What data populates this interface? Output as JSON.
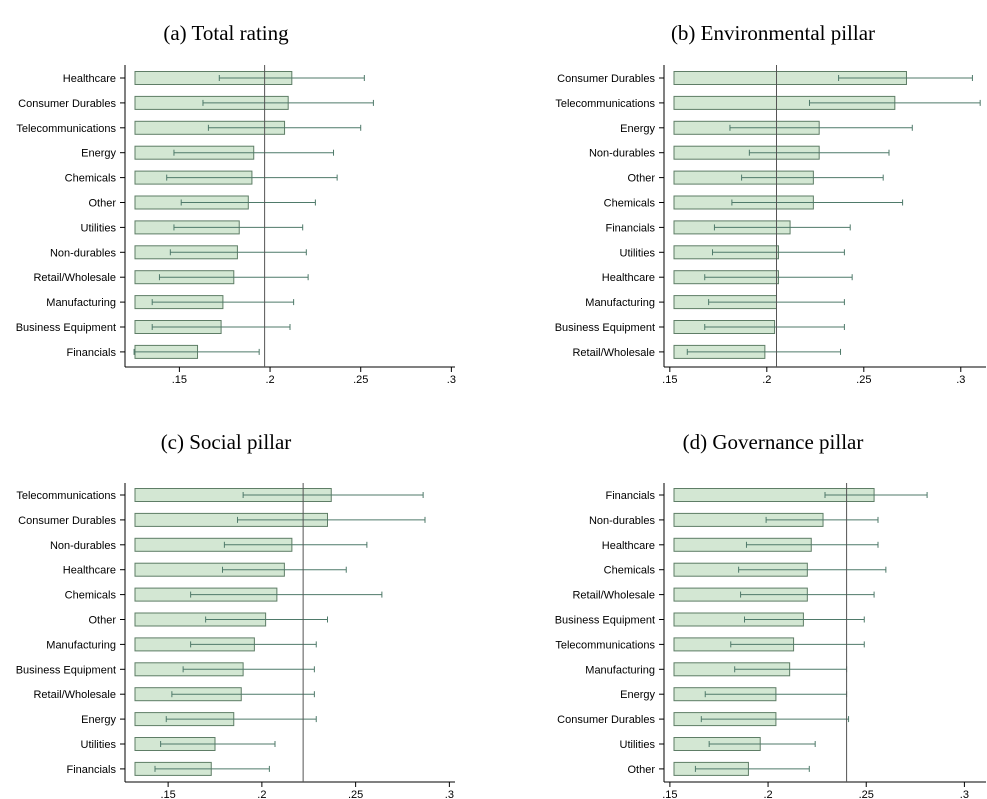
{
  "colors": {
    "bar_fill": "#d3e7d3",
    "bar_stroke": "#5e7d66",
    "whisker": "#4f7a6a",
    "mean_line": "#555555",
    "axis": "#000000"
  },
  "chart_data": [
    {
      "type": "bar",
      "orientation": "horizontal",
      "title": "(a) Total rating",
      "categories": [
        "Healthcare",
        "Consumer Durables",
        "Telecommunications",
        "Energy",
        "Chemicals",
        "Other",
        "Utilities",
        "Non-durables",
        "Retail/Wholesale",
        "Manufacturing",
        "Business Equipment",
        "Financials"
      ],
      "values": [
        0.212,
        0.21,
        0.208,
        0.191,
        0.19,
        0.188,
        0.183,
        0.182,
        0.18,
        0.174,
        0.173,
        0.16
      ],
      "ci_low": [
        0.172,
        0.163,
        0.166,
        0.147,
        0.143,
        0.151,
        0.147,
        0.145,
        0.139,
        0.135,
        0.135,
        0.125
      ],
      "ci_high": [
        0.252,
        0.257,
        0.25,
        0.235,
        0.237,
        0.225,
        0.218,
        0.22,
        0.221,
        0.213,
        0.211,
        0.194
      ],
      "reference_line": 0.197,
      "xlim": [
        0.12,
        0.302
      ],
      "xticks": [
        ".15",
        ".2",
        ".25",
        ".3"
      ],
      "xtick_values": [
        0.15,
        0.2,
        0.25,
        0.3
      ]
    },
    {
      "type": "bar",
      "orientation": "horizontal",
      "title": "(b) Environmental pillar",
      "categories": [
        "Consumer Durables",
        "Telecommunications",
        "Energy",
        "Non-durables",
        "Other",
        "Chemicals",
        "Financials",
        "Utilities",
        "Healthcare",
        "Manufacturing",
        "Business Equipment",
        "Retail/Wholesale"
      ],
      "values": [
        0.272,
        0.266,
        0.227,
        0.227,
        0.224,
        0.224,
        0.212,
        0.206,
        0.206,
        0.205,
        0.204,
        0.199
      ],
      "ci_low": [
        0.237,
        0.222,
        0.181,
        0.191,
        0.187,
        0.182,
        0.173,
        0.172,
        0.168,
        0.17,
        0.168,
        0.159
      ],
      "ci_high": [
        0.306,
        0.31,
        0.275,
        0.263,
        0.26,
        0.27,
        0.243,
        0.24,
        0.244,
        0.24,
        0.24,
        0.238
      ],
      "reference_line": 0.205,
      "xlim": [
        0.147,
        0.313
      ],
      "xticks": [
        ".15",
        ".2",
        ".25",
        ".3"
      ],
      "xtick_values": [
        0.15,
        0.2,
        0.25,
        0.3
      ]
    },
    {
      "type": "bar",
      "orientation": "horizontal",
      "title": "(c) Social pillar",
      "categories": [
        "Telecommunications",
        "Consumer Durables",
        "Non-durables",
        "Healthcare",
        "Chemicals",
        "Other",
        "Manufacturing",
        "Business Equipment",
        "Retail/Wholesale",
        "Energy",
        "Utilities",
        "Financials"
      ],
      "values": [
        0.237,
        0.235,
        0.216,
        0.212,
        0.208,
        0.202,
        0.196,
        0.19,
        0.189,
        0.185,
        0.175,
        0.173
      ],
      "ci_low": [
        0.19,
        0.187,
        0.18,
        0.179,
        0.162,
        0.17,
        0.162,
        0.158,
        0.152,
        0.149,
        0.146,
        0.143
      ],
      "ci_high": [
        0.286,
        0.287,
        0.256,
        0.245,
        0.264,
        0.235,
        0.229,
        0.228,
        0.228,
        0.229,
        0.207,
        0.204
      ],
      "reference_line": 0.222,
      "xlim": [
        0.127,
        0.303
      ],
      "xticks": [
        ".15",
        ".2",
        ".25",
        ".3"
      ],
      "xtick_values": [
        0.15,
        0.2,
        0.25,
        0.3
      ]
    },
    {
      "type": "bar",
      "orientation": "horizontal",
      "title": "(d) Governance pillar",
      "categories": [
        "Financials",
        "Non-durables",
        "Healthcare",
        "Chemicals",
        "Retail/Wholesale",
        "Business Equipment",
        "Telecommunications",
        "Manufacturing",
        "Energy",
        "Consumer Durables",
        "Utilities",
        "Other"
      ],
      "values": [
        0.254,
        0.228,
        0.222,
        0.22,
        0.22,
        0.218,
        0.213,
        0.211,
        0.204,
        0.204,
        0.196,
        0.19
      ],
      "ci_low": [
        0.229,
        0.199,
        0.189,
        0.185,
        0.186,
        0.188,
        0.181,
        0.183,
        0.168,
        0.166,
        0.17,
        0.163
      ],
      "ci_high": [
        0.281,
        0.256,
        0.256,
        0.26,
        0.254,
        0.249,
        0.249,
        0.24,
        0.24,
        0.241,
        0.224,
        0.221
      ],
      "reference_line": 0.24,
      "xlim": [
        0.147,
        0.311
      ],
      "xticks": [
        ".15",
        ".2",
        ".25",
        ".3"
      ],
      "xtick_values": [
        0.15,
        0.2,
        0.25,
        0.3
      ]
    }
  ]
}
